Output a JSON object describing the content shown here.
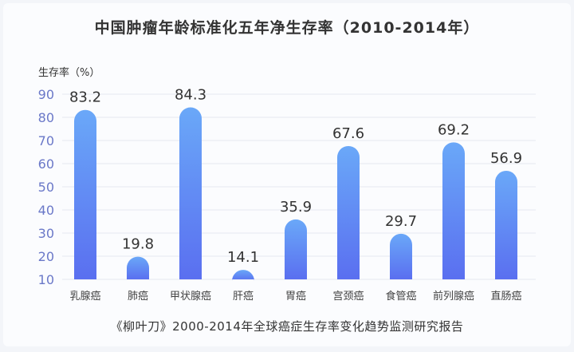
{
  "chart_data": {
    "type": "bar",
    "title": "中国肿瘤年龄标准化五年净生存率（2010-2014年）",
    "ylabel": "生存率（%）",
    "categories": [
      "乳腺癌",
      "肺癌",
      "甲状腺癌",
      "肝癌",
      "胃癌",
      "宫颈癌",
      "食管癌",
      "前列腺癌",
      "直肠癌"
    ],
    "values": [
      83.2,
      19.8,
      84.3,
      14.1,
      35.9,
      67.6,
      29.7,
      69.2,
      56.9
    ],
    "ylim": [
      10,
      90
    ],
    "yticks": [
      10,
      20,
      30,
      40,
      50,
      60,
      70,
      80,
      90
    ],
    "grid": true,
    "colors": {
      "bar_top": "#6aa8f8",
      "bar_bottom": "#5a6ff0",
      "tick": "#6a78c8",
      "grid": "#e6e9f0"
    },
    "source": "《柳叶刀》2000-2014年全球癌症生存率变化趋势监测研究报告"
  }
}
